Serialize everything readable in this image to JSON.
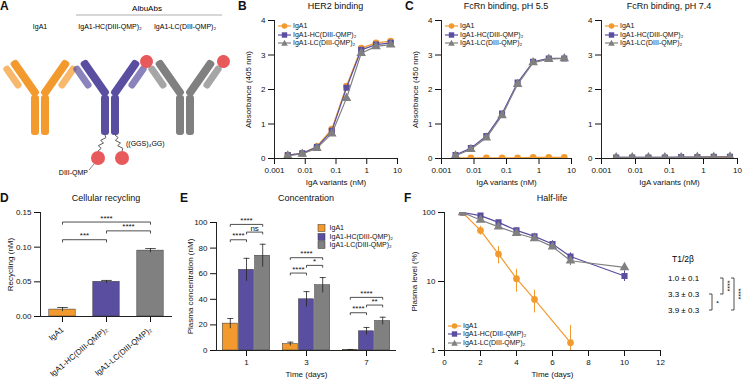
{
  "diagram": {
    "panel": "A",
    "group_label": "AlbuAbs",
    "antibodies": [
      {
        "name": "IgA1",
        "color": "#f39a2e"
      },
      {
        "name": "IgA1-HC(DIII-QMP)₂",
        "color": "#5a4ea0",
        "fusion": "HC"
      },
      {
        "name": "IgA1-LC(DIII-QMP)₂",
        "color": "#808080",
        "fusion": "LC"
      }
    ],
    "linker_label": "((GGS)₄GG)",
    "domain_label": "DIII-QMP",
    "domain_color": "#e8595c"
  },
  "chart_data": [
    {
      "panel": "B",
      "type": "line",
      "title": "HER2 binding",
      "x_label": "IgA variants (nM)",
      "y_label": "Absorbance (405 nm)",
      "log": "x",
      "x": [
        0.0027,
        0.008,
        0.024,
        0.073,
        0.22,
        0.66,
        2,
        6
      ],
      "xlim": [
        0.001,
        10
      ],
      "xticks": [
        0.001,
        0.01,
        0.1,
        1,
        10
      ],
      "ylim": [
        0,
        4
      ],
      "yticks": [
        0,
        1,
        2,
        3,
        4
      ],
      "legend": "top-left",
      "series": [
        {
          "name": "IgA1",
          "color": "#f39a2e",
          "marker": "circle",
          "values": [
            0.1,
            0.15,
            0.35,
            0.85,
            2.1,
            3.2,
            3.35,
            3.4
          ]
        },
        {
          "name": "IgA1-HC(DIII-QMP)₂",
          "color": "#5a4ea0",
          "marker": "square",
          "values": [
            0.1,
            0.15,
            0.33,
            0.8,
            2.05,
            3.15,
            3.3,
            3.35
          ]
        },
        {
          "name": "IgA1-LC(DIII-QMP)₂",
          "color": "#808080",
          "marker": "triangle",
          "values": [
            0.08,
            0.13,
            0.3,
            0.72,
            1.75,
            3.05,
            3.25,
            3.3
          ]
        }
      ]
    },
    {
      "panel": "C",
      "type": "line",
      "title": "FcRn binding, pH 5.5",
      "x_label": "IgA variants (nM)",
      "y_label": "Absorbance (450 nm)",
      "log": "x",
      "x": [
        0.0027,
        0.008,
        0.024,
        0.073,
        0.22,
        0.66,
        2,
        6
      ],
      "xlim": [
        0.001,
        10
      ],
      "xticks": [
        0.001,
        0.01,
        0.1,
        1,
        10
      ],
      "ylim": [
        0,
        4
      ],
      "yticks": [
        0,
        1,
        2,
        3,
        4
      ],
      "legend": "top-left",
      "series": [
        {
          "name": "IgA1",
          "color": "#f39a2e",
          "marker": "circle",
          "values": [
            0.02,
            0.02,
            0.02,
            0.02,
            0.02,
            0.03,
            0.03,
            0.03
          ]
        },
        {
          "name": "IgA1-HC(DIII-QMP)₂",
          "color": "#5a4ea0",
          "marker": "square",
          "values": [
            0.1,
            0.3,
            0.65,
            1.3,
            2.2,
            2.8,
            2.9,
            2.9
          ]
        },
        {
          "name": "IgA1-LC(DIII-QMP)₂",
          "color": "#808080",
          "marker": "triangle",
          "values": [
            0.08,
            0.27,
            0.6,
            1.25,
            2.15,
            2.78,
            2.88,
            2.9
          ]
        }
      ]
    },
    {
      "type": "line",
      "title": "FcRn binding, pH 7.4",
      "x_label": "IgA variants (nM)",
      "log": "x",
      "x": [
        0.0027,
        0.008,
        0.024,
        0.073,
        0.22,
        0.66,
        2,
        6
      ],
      "xlim": [
        0.001,
        10
      ],
      "xticks": [
        0.001,
        0.01,
        0.1,
        1,
        10
      ],
      "ylim": [
        0,
        4
      ],
      "yticks": [
        0,
        1,
        2,
        3,
        4
      ],
      "legend": "top-left",
      "series": [
        {
          "name": "IgA1",
          "color": "#f39a2e",
          "marker": "circle",
          "values": [
            0.02,
            0.02,
            0.02,
            0.02,
            0.02,
            0.03,
            0.03,
            0.03
          ]
        },
        {
          "name": "IgA1-HC(DIII-QMP)₂",
          "color": "#5a4ea0",
          "marker": "square",
          "values": [
            0.03,
            0.03,
            0.03,
            0.03,
            0.04,
            0.04,
            0.05,
            0.05
          ]
        },
        {
          "name": "IgA1-LC(DIII-QMP)₂",
          "color": "#808080",
          "marker": "triangle",
          "values": [
            0.03,
            0.03,
            0.03,
            0.03,
            0.03,
            0.04,
            0.04,
            0.05
          ]
        }
      ]
    },
    {
      "panel": "D",
      "type": "bar",
      "title": "Cellular recycling",
      "y_label": "Recycling (nM)",
      "categories": [
        "IgA1",
        "IgA1-HC(DIII-QMP)₂",
        "IgA1-LC(DIII-QMP)₂"
      ],
      "values": [
        0.01,
        0.05,
        0.095
      ],
      "errors": [
        0.003,
        0.002,
        0.003
      ],
      "colors": [
        "#f39a2e",
        "#5a4ea0",
        "#808080"
      ],
      "ylim": [
        0,
        0.15
      ],
      "yticks": [
        {
          "value": 0,
          "label": "0.00"
        },
        0.05,
        {
          "value": 0.1,
          "label": "0.10"
        },
        0.15
      ],
      "comparisons": [
        {
          "pair": [
            0,
            1
          ],
          "label": "***"
        },
        {
          "pair": [
            1,
            2
          ],
          "label": "****"
        },
        {
          "pair": [
            0,
            2
          ],
          "label": "****"
        }
      ]
    },
    {
      "panel": "E",
      "type": "bar",
      "title": "Concentration",
      "x_label": "Time (days)",
      "y_label": "Plasma concentration (nM)",
      "categories": [
        "1",
        "3",
        "7"
      ],
      "ylim": [
        0,
        100
      ],
      "yticks": [
        0,
        20,
        40,
        60,
        80,
        100
      ],
      "legend": "top-right",
      "series": [
        {
          "name": "IgA1",
          "color": "#f39a2e",
          "values": [
            21,
            5,
            0.5
          ],
          "errors": [
            4,
            1.5,
            0.3
          ]
        },
        {
          "name": "IgA1-HC(DIII-QMP)₂",
          "color": "#5a4ea0",
          "values": [
            63,
            40,
            15
          ],
          "errors": [
            9,
            6,
            3
          ]
        },
        {
          "name": "IgA1-LC(DIII-QMP)₂",
          "color": "#808080",
          "values": [
            74,
            51,
            23
          ],
          "errors": [
            9,
            6,
            3
          ]
        }
      ],
      "comparisons": [
        [
          {
            "pair": [
              0,
              1
            ],
            "label": "****"
          },
          {
            "pair": [
              1,
              2
            ],
            "label": "ns"
          },
          {
            "pair": [
              0,
              2
            ],
            "label": "****"
          }
        ],
        [
          {
            "pair": [
              0,
              1
            ],
            "label": "****"
          },
          {
            "pair": [
              1,
              2
            ],
            "label": "*"
          },
          {
            "pair": [
              0,
              2
            ],
            "label": "****"
          }
        ],
        [
          {
            "pair": [
              0,
              1
            ],
            "label": "****"
          },
          {
            "pair": [
              1,
              2
            ],
            "label": "**"
          },
          {
            "pair": [
              0,
              2
            ],
            "label": "****"
          }
        ]
      ]
    },
    {
      "panel": "F",
      "type": "line",
      "title": "Half-life",
      "x_label": "Time (days)",
      "y_label": "Plasma level (%)",
      "log": "y",
      "xlim": [
        0,
        12
      ],
      "xticks": [
        0,
        2,
        4,
        6,
        8,
        10,
        12
      ],
      "ylim": [
        1,
        100
      ],
      "yticks": [
        1,
        10,
        100
      ],
      "legend": "bottom-left",
      "series": [
        {
          "name": "IgA1",
          "color": "#f39a2e",
          "marker": "circle",
          "x": [
            1,
            2,
            3,
            4,
            5,
            7
          ],
          "values": [
            100,
            55,
            25,
            11,
            5.5,
            1.3
          ],
          "errors": [
            0,
            8,
            7,
            4,
            2,
            1
          ]
        },
        {
          "name": "IgA1-HC(DIII-QMP)₂",
          "color": "#5a4ea0",
          "marker": "square",
          "x": [
            1,
            2,
            3,
            4,
            5,
            6,
            7,
            10
          ],
          "values": [
            100,
            90,
            72,
            55,
            45,
            35,
            23,
            12
          ],
          "errors": [
            0,
            5,
            5,
            5,
            5,
            4,
            3,
            2
          ]
        },
        {
          "name": "IgA1-LC(DIII-QMP)₂",
          "color": "#808080",
          "marker": "triangle",
          "x": [
            1,
            2,
            3,
            4,
            5,
            6,
            7,
            10
          ],
          "values": [
            100,
            78,
            62,
            50,
            42,
            32,
            20,
            16
          ],
          "errors": [
            0,
            5,
            5,
            4,
            4,
            3,
            3,
            2
          ]
        }
      ],
      "half_life": {
        "label": "T1/2β",
        "values": [
          "1.0 ± 0.1",
          "3.3 ± 0.3",
          "3.9 ± 0.3"
        ],
        "comparisons": [
          {
            "pair": [
              1,
              2
            ],
            "label": "*"
          },
          {
            "pair": [
              0,
              1
            ],
            "label": "****"
          },
          {
            "pair": [
              0,
              2
            ],
            "label": "****"
          }
        ]
      }
    }
  ]
}
